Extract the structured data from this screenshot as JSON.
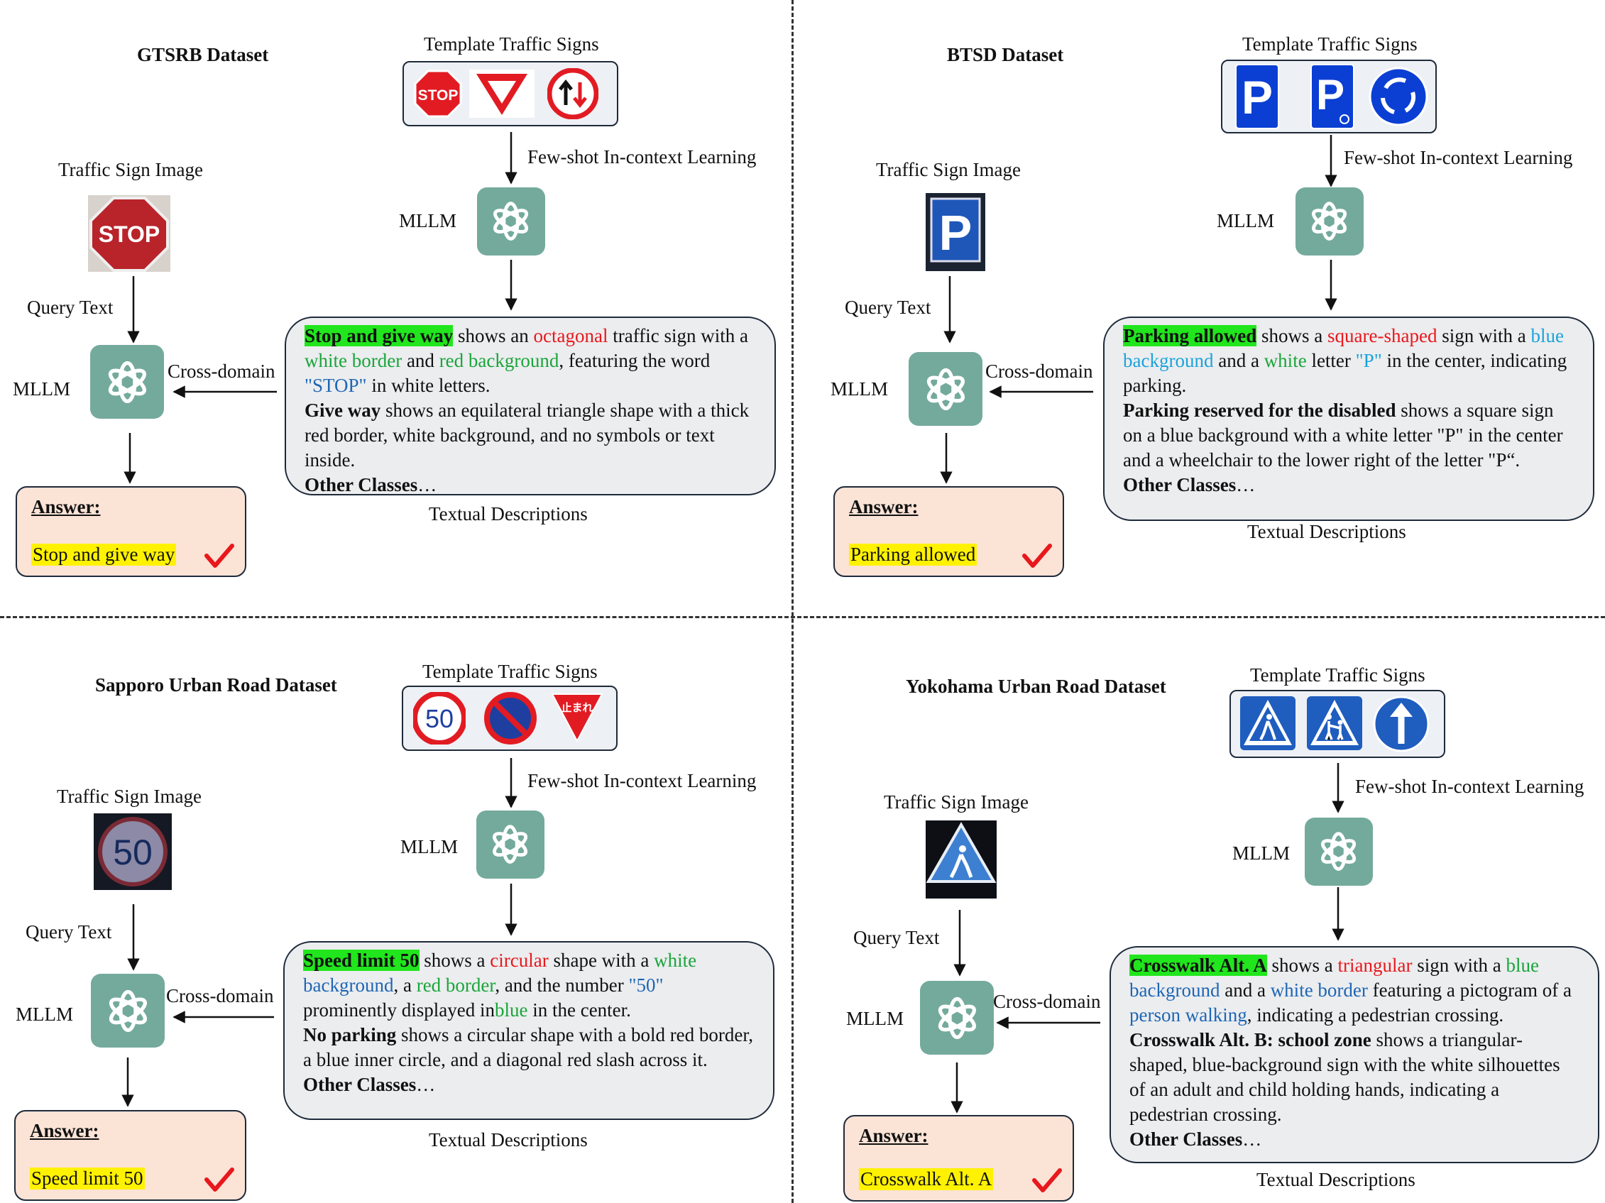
{
  "colors": {
    "accent_green": "#21e61d",
    "answer_bg": "#fbe3d6",
    "highlight_yellow": "#fff200",
    "gpt_teal": "#74aa9c",
    "text_red": "#e8181c",
    "text_green": "#19a53a",
    "text_blue": "#1e66b4"
  },
  "labels": {
    "template": "Template Traffic Signs",
    "few_shot": "Few-shot In-context Learning",
    "mllm": "MLLM",
    "traffic_sign_image": "Traffic Sign Image",
    "query_text": "Query Text",
    "cross_domain": "Cross-domain",
    "textual_descriptions": "Textual Descriptions",
    "answer": "Answer:"
  },
  "panels": [
    {
      "title": "GTSRB Dataset",
      "icons": [
        "stop-sign-icon",
        "yield-triangle-icon",
        "no-entry-oncoming-icon"
      ],
      "query_icon": "stop-sign-photo",
      "desc": {
        "p1_name": "Stop and give way",
        "p1_a": " shows an ",
        "p1_shape": "octagonal",
        "p1_b": " traffic sign with a ",
        "p1_c1": "white border",
        "p1_d": " and ",
        "p1_c2": "red background",
        "p1_e": ", featuring the word ",
        "p1_c3": "\"STOP\"",
        "p1_f": " in white letters.",
        "p2_name": "Give way",
        "p2_text": " shows an equilateral triangle shape with a thick red border, white background, and no symbols or text inside.",
        "other": "Other Classes",
        "ellipsis": "…"
      },
      "answer": "Stop and give way"
    },
    {
      "title": "BTSD Dataset",
      "icons": [
        "parking-icon",
        "parking-disabled-icon",
        "roundabout-icon"
      ],
      "query_icon": "parking-sign-photo",
      "desc": {
        "p1_name": "Parking allowed",
        "p1_a": " shows a ",
        "p1_shape": "square-shaped",
        "p1_b": " sign with a ",
        "p1_c1": "blue background",
        "p1_d": " and a ",
        "p1_c2": "white",
        "p1_e": " letter ",
        "p1_c3": "\"P\"",
        "p1_f": " in the center, indicating parking.",
        "p2_name": "Parking reserved for the disabled",
        "p2_text": " shows a square sign on a blue background with a white letter \"P\" in the center and a wheelchair to the lower right of the letter \"P“.",
        "other": "Other Classes",
        "ellipsis": "…"
      },
      "answer": "Parking allowed"
    },
    {
      "title": "Sapporo Urban Road Dataset",
      "icons": [
        "speed-limit-50-icon",
        "no-parking-icon",
        "japanese-stop-icon"
      ],
      "sign_texts": {
        "speed": "50",
        "tomare": "止まれ"
      },
      "query_icon": "speed-limit-photo",
      "desc": {
        "p1_name": "Speed limit 50",
        "p1_a": " shows a ",
        "p1_shape": "circular",
        "p1_b": " shape with a ",
        "p1_c1": "white",
        "p1_c1b": "background",
        "p1_d": ", a ",
        "p1_c2": "red border",
        "p1_e": ", and the number ",
        "p1_c3": "\"50\"",
        "p1_f": "prominently displayed in",
        "p1_c4": "blue",
        "p1_g": " in the center.",
        "p2_name": "No parking",
        "p2_text": " shows a circular shape with a bold red border, a blue inner circle, and a diagonal red slash across it.",
        "other": "Other Classes",
        "ellipsis": "…"
      },
      "answer": "Speed limit 50"
    },
    {
      "title": "Yokohama Urban Road Dataset",
      "icons": [
        "crosswalk-icon",
        "school-zone-icon",
        "straight-only-icon"
      ],
      "query_icon": "crosswalk-photo",
      "desc": {
        "p1_name": "Crosswalk Alt. A",
        "p1_a": " shows a ",
        "p1_shape": "triangular",
        "p1_b": " sign with a ",
        "p1_c1": "blue",
        "p1_c1b": "background",
        "p1_d": " and a ",
        "p1_c2": "white border",
        "p1_e": " featuring a pictogram of a ",
        "p1_c3": "person walking",
        "p1_f": ", indicating a pedestrian crossing.",
        "p2_name": "Crosswalk Alt. B: school zone",
        "p2_text": " shows a triangular-shaped, blue-background sign with the white silhouettes of an adult and child holding hands, indicating a pedestrian crossing.",
        "other": "Other Classes",
        "ellipsis": "…"
      },
      "answer": "Crosswalk Alt. A"
    }
  ]
}
